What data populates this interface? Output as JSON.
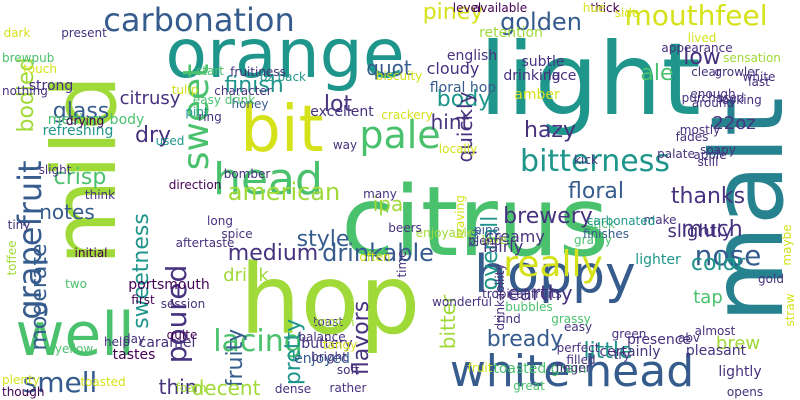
{
  "palette": {
    "background": "#ffffff",
    "lime": "#a0da39",
    "yellow": "#d5e21a",
    "teal": "#1f968b",
    "green": "#4ac16d",
    "blue": "#365c8d",
    "indigo": "#46327e",
    "purple": "#440154",
    "cyan": "#26828e"
  },
  "words": [
    {
      "text": "citrus",
      "color": "#4ac16d"
    },
    {
      "text": "light",
      "color": "#1f968b"
    },
    {
      "text": "hop",
      "color": "#a0da39"
    },
    {
      "text": "malt",
      "color": "#26828e"
    },
    {
      "text": "orange",
      "color": "#1f968b"
    },
    {
      "text": "mild",
      "color": "#a0da39"
    },
    {
      "text": "bit",
      "color": "#d5e21a"
    },
    {
      "text": "white head",
      "color": "#365c8d"
    },
    {
      "text": "hoppy",
      "color": "#365c8d"
    },
    {
      "text": "well",
      "color": "#4ac16d"
    },
    {
      "text": "head",
      "color": "#4ac16d"
    },
    {
      "text": "bitterness",
      "color": "#1f968b"
    },
    {
      "text": "carbonation",
      "color": "#365c8d"
    },
    {
      "text": "grapefruit",
      "color": "#365c8d"
    },
    {
      "text": "sweet",
      "color": "#4ac16d"
    },
    {
      "text": "pale",
      "color": "#4ac16d"
    },
    {
      "text": "really",
      "color": "#d5e21a"
    },
    {
      "text": "lacing",
      "color": "#4ac16d"
    },
    {
      "text": "smell",
      "color": "#365c8d"
    },
    {
      "text": "poured",
      "color": "#46327e"
    },
    {
      "text": "mouthfeel",
      "color": "#d5e21a"
    },
    {
      "text": "drinkable",
      "color": "#365c8d"
    },
    {
      "text": "nose",
      "color": "#365c8d"
    },
    {
      "text": "american",
      "color": "#a0da39"
    },
    {
      "text": "medium",
      "color": "#46327e"
    },
    {
      "text": "finish",
      "color": "#1f968b"
    },
    {
      "text": "bready",
      "color": "#365c8d"
    },
    {
      "text": "flavors",
      "color": "#46327e"
    },
    {
      "text": "floral",
      "color": "#365c8d"
    },
    {
      "text": "golden",
      "color": "#365c8d"
    },
    {
      "text": "color",
      "color": "#1f968b"
    },
    {
      "text": "overall",
      "color": "#1f968b"
    },
    {
      "text": "brewery",
      "color": "#46327e"
    },
    {
      "text": "much",
      "color": "#46327e"
    },
    {
      "text": "sweetness",
      "color": "#1f968b"
    },
    {
      "text": "crisp",
      "color": "#4ac16d"
    },
    {
      "text": "moderate",
      "color": "#365c8d"
    },
    {
      "text": "bodied",
      "color": "#a0da39"
    },
    {
      "text": "style",
      "color": "#365c8d"
    },
    {
      "text": "glass",
      "color": "#365c8d"
    },
    {
      "text": "little",
      "color": "#1f968b"
    },
    {
      "text": "body",
      "color": "#1f968b"
    },
    {
      "text": "lot",
      "color": "#46327e"
    },
    {
      "text": "dry",
      "color": "#46327e"
    },
    {
      "text": "thanks",
      "color": "#46327e"
    },
    {
      "text": "hazy",
      "color": "#46327e"
    },
    {
      "text": "ale",
      "color": "#4ac16d"
    },
    {
      "text": "low",
      "color": "#46327e"
    },
    {
      "text": "quot",
      "color": "#365c8d"
    },
    {
      "text": "thin",
      "color": "#46327e"
    },
    {
      "text": "pretty",
      "color": "#1f968b"
    },
    {
      "text": "fruity",
      "color": "#365c8d"
    },
    {
      "text": "decent",
      "color": "#a0da39"
    },
    {
      "text": "earthy",
      "color": "#46327e"
    },
    {
      "text": "notes",
      "color": "#365c8d"
    },
    {
      "text": "drink",
      "color": "#a0da39"
    },
    {
      "text": "brew",
      "color": "#a0da39"
    },
    {
      "text": "bitter",
      "color": "#a0da39"
    },
    {
      "text": "piney",
      "color": "#d5e21a"
    },
    {
      "text": "quickly",
      "color": "#46327e"
    },
    {
      "text": "hint",
      "color": "#46327e"
    },
    {
      "text": "ipa",
      "color": "#a0da39"
    },
    {
      "text": "tap",
      "color": "#4ac16d"
    },
    {
      "text": "citrusy",
      "color": "#46327e"
    },
    {
      "text": "slightly",
      "color": "#46327e"
    },
    {
      "text": "22oz",
      "color": "#46327e"
    },
    {
      "text": "cloudy",
      "color": "#46327e"
    },
    {
      "text": "fairly",
      "color": "#46327e"
    },
    {
      "text": "creamy",
      "color": "#46327e"
    },
    {
      "text": "floral hop",
      "color": "#365c8d"
    },
    {
      "text": "refreshing",
      "color": "#1f968b"
    },
    {
      "text": "portsmouth",
      "color": "#440154"
    },
    {
      "text": "lighter",
      "color": "#1f968b"
    },
    {
      "text": "presence",
      "color": "#46327e"
    },
    {
      "text": "caramel",
      "color": "#46327e"
    },
    {
      "text": "tastes",
      "color": "#440154"
    },
    {
      "text": "strong",
      "color": "#46327e"
    },
    {
      "text": "english",
      "color": "#46327e"
    },
    {
      "text": "amber",
      "color": "#d5e21a"
    },
    {
      "text": "buttery",
      "color": "#46327e"
    },
    {
      "text": "enjoyed",
      "color": "#365c8d"
    },
    {
      "text": "excellent",
      "color": "#46327e"
    },
    {
      "text": "toasted grain",
      "color": "#4ac16d"
    },
    {
      "text": "lightly",
      "color": "#46327e"
    },
    {
      "text": "certainly",
      "color": "#46327e"
    },
    {
      "text": "pleasant",
      "color": "#46327e"
    },
    {
      "text": "medium body",
      "color": "#4ac16d"
    },
    {
      "text": "retention",
      "color": "#a0da39"
    },
    {
      "text": "drinking",
      "color": "#46327e"
    },
    {
      "text": "lace",
      "color": "#46327e"
    },
    {
      "text": "subtle",
      "color": "#46327e"
    },
    {
      "text": "character",
      "color": "#46327e"
    },
    {
      "text": "honey",
      "color": "#365c8d"
    },
    {
      "text": "ring",
      "color": "#46327e"
    },
    {
      "text": "pint",
      "color": "#1f968b"
    },
    {
      "text": "start",
      "color": "#4ac16d"
    },
    {
      "text": "way",
      "color": "#46327e"
    },
    {
      "text": "many",
      "color": "#46327e"
    },
    {
      "text": "love",
      "color": "#a0da39"
    },
    {
      "text": "big",
      "color": "#365c8d"
    },
    {
      "text": "pine",
      "color": "#365c8d"
    },
    {
      "text": "blend",
      "color": "#46327e"
    },
    {
      "text": "toast",
      "color": "#46327e"
    },
    {
      "text": "balance",
      "color": "#46327e"
    },
    {
      "text": "smooth",
      "color": "#a0da39"
    },
    {
      "text": "tangy",
      "color": "#d5e21a"
    },
    {
      "text": "soft",
      "color": "#46327e"
    },
    {
      "text": "rather",
      "color": "#46327e"
    },
    {
      "text": "dense",
      "color": "#46327e"
    },
    {
      "text": "bright",
      "color": "#46327e"
    },
    {
      "text": "two",
      "color": "#4ac16d"
    },
    {
      "text": "quite",
      "color": "#440154"
    },
    {
      "text": "first",
      "color": "#440154"
    },
    {
      "text": "initial",
      "color": "#440154"
    },
    {
      "text": "yellow",
      "color": "#4ac16d"
    },
    {
      "text": "help",
      "color": "#46327e"
    },
    {
      "text": "day",
      "color": "#46327e"
    },
    {
      "text": "toasted",
      "color": "#d5e21a"
    },
    {
      "text": "plenty",
      "color": "#d5e21a"
    },
    {
      "text": "though",
      "color": "#440154"
    },
    {
      "text": "foam",
      "color": "#a0da39"
    },
    {
      "text": "finger",
      "color": "#46327e"
    },
    {
      "text": "filled",
      "color": "#46327e"
    },
    {
      "text": "perfect",
      "color": "#46327e"
    },
    {
      "text": "easy",
      "color": "#46327e"
    },
    {
      "text": "grassy",
      "color": "#4ac16d"
    },
    {
      "text": "green",
      "color": "#46327e"
    },
    {
      "text": "rind",
      "color": "#46327e"
    },
    {
      "text": "fruit",
      "color": "#d5e21a"
    },
    {
      "text": "try",
      "color": "#46327e"
    },
    {
      "text": "abv",
      "color": "#46327e"
    },
    {
      "text": "great",
      "color": "#4ac16d"
    },
    {
      "text": "kick",
      "color": "#46327e"
    },
    {
      "text": "make",
      "color": "#46327e"
    },
    {
      "text": "still",
      "color": "#46327e"
    },
    {
      "text": "palate",
      "color": "#46327e"
    },
    {
      "text": "gold",
      "color": "#46327e"
    },
    {
      "text": "soapy",
      "color": "#46327e"
    },
    {
      "text": "apple",
      "color": "#46327e"
    },
    {
      "text": "fades",
      "color": "#46327e"
    },
    {
      "text": "mostly",
      "color": "#46327e"
    },
    {
      "text": "enough",
      "color": "#46327e"
    },
    {
      "text": "looking",
      "color": "#46327e"
    },
    {
      "text": "purchased",
      "color": "#46327e"
    },
    {
      "text": "around",
      "color": "#46327e"
    },
    {
      "text": "white",
      "color": "#46327e"
    },
    {
      "text": "last",
      "color": "#46327e"
    },
    {
      "text": "clear",
      "color": "#46327e"
    },
    {
      "text": "growler",
      "color": "#46327e"
    },
    {
      "text": "lived",
      "color": "#d5e21a"
    },
    {
      "text": "appearance",
      "color": "#46327e"
    },
    {
      "text": "sensation",
      "color": "#a0da39"
    },
    {
      "text": "side",
      "color": "#d5e21a"
    },
    {
      "text": "thick",
      "color": "#440154"
    },
    {
      "text": "hue",
      "color": "#d5e21a"
    },
    {
      "text": "level",
      "color": "#440154"
    },
    {
      "text": "available",
      "color": "#440154"
    },
    {
      "text": "present",
      "color": "#46327e"
    },
    {
      "text": "dark",
      "color": "#d5e21a"
    },
    {
      "text": "touch",
      "color": "#d5e21a"
    },
    {
      "text": "brewpub",
      "color": "#4ac16d"
    },
    {
      "text": "nothing",
      "color": "#46327e"
    },
    {
      "text": "drying",
      "color": "#440154"
    },
    {
      "text": "stick",
      "color": "#4ac16d"
    },
    {
      "text": "carbonated",
      "color": "#1f968b"
    },
    {
      "text": "grainy",
      "color": "#4ac16d"
    },
    {
      "text": "finishes",
      "color": "#365c8d"
    },
    {
      "text": "leaving",
      "color": "#d5e21a"
    },
    {
      "text": "enjoyable",
      "color": "#a0da39"
    },
    {
      "text": "beers",
      "color": "#46327e"
    },
    {
      "text": "time",
      "color": "#46327e"
    },
    {
      "text": "often",
      "color": "#d5e21a"
    },
    {
      "text": "wonderful",
      "color": "#46327e"
    },
    {
      "text": "drinkability",
      "color": "#46327e"
    },
    {
      "text": "tropical fruits",
      "color": "#46327e"
    },
    {
      "text": "bubbles",
      "color": "#4ac16d"
    },
    {
      "text": "almost",
      "color": "#46327e"
    },
    {
      "text": "opens",
      "color": "#46327e"
    },
    {
      "text": "maybe",
      "color": "#d5e21a"
    },
    {
      "text": "straw",
      "color": "#d5e21a"
    },
    {
      "text": "used",
      "color": "#1f968b"
    },
    {
      "text": "direction",
      "color": "#440154"
    },
    {
      "text": "think",
      "color": "#46327e"
    },
    {
      "text": "slight",
      "color": "#46327e"
    },
    {
      "text": "tiny",
      "color": "#46327e"
    },
    {
      "text": "toffee",
      "color": "#a0da39"
    },
    {
      "text": "tulip",
      "color": "#d5e21a"
    },
    {
      "text": "bomber",
      "color": "#46327e"
    },
    {
      "text": "spice",
      "color": "#46327e"
    },
    {
      "text": "long",
      "color": "#46327e"
    },
    {
      "text": "session",
      "color": "#46327e"
    },
    {
      "text": "aftertaste",
      "color": "#46327e"
    },
    {
      "text": "easy drink",
      "color": "#4ac16d"
    },
    {
      "text": "oz back",
      "color": "#1f968b"
    },
    {
      "text": "fruitiness",
      "color": "#46327e"
    },
    {
      "text": "biscuity",
      "color": "#d5e21a"
    },
    {
      "text": "crackery",
      "color": "#d5e21a"
    },
    {
      "text": "locally",
      "color": "#d5e21a"
    }
  ]
}
